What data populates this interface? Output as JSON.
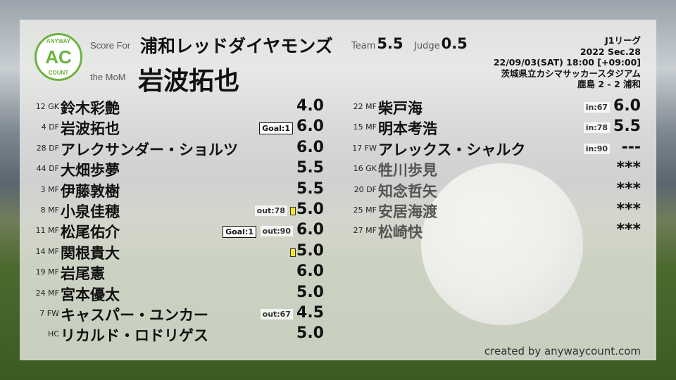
{
  "logo": {
    "top": "ANYWAY",
    "main": "AC",
    "bottom": "COUNT"
  },
  "header": {
    "score_for_label": "Score For",
    "team": "浦和レッドダイヤモンズ",
    "mom_label": "the MoM",
    "mom": "岩波拓也",
    "team_label": "Team",
    "team_score": "5.5",
    "judge_label": "Judge",
    "judge_score": "0.5"
  },
  "match": {
    "league": "J1リーグ",
    "section": "2022 Sec.28",
    "datetime": "22/09/03(SAT) 18:00 [+09:00]",
    "stadium": "茨城県立カシマサッカースタジアム",
    "result": "鹿島 2 - 2 浦和"
  },
  "starters": [
    {
      "num": "12",
      "pos": "GK",
      "name": "鈴木彩艶",
      "score": "4.0"
    },
    {
      "num": "4",
      "pos": "DF",
      "name": "岩波拓也",
      "score": "6.0",
      "goal": "Goal:1"
    },
    {
      "num": "28",
      "pos": "DF",
      "name": "アレクサンダー・ショルツ",
      "score": "6.0"
    },
    {
      "num": "44",
      "pos": "DF",
      "name": "大畑歩夢",
      "score": "5.5"
    },
    {
      "num": "3",
      "pos": "MF",
      "name": "伊藤敦樹",
      "score": "5.5"
    },
    {
      "num": "8",
      "pos": "MF",
      "name": "小泉佳穂",
      "score": "5.0",
      "sub": "out:78",
      "yellow": true
    },
    {
      "num": "11",
      "pos": "MF",
      "name": "松尾佑介",
      "score": "6.0",
      "goal": "Goal:1",
      "sub": "out:90"
    },
    {
      "num": "14",
      "pos": "MF",
      "name": "関根貴大",
      "score": "5.0",
      "yellow": true
    },
    {
      "num": "19",
      "pos": "MF",
      "name": "岩尾憲",
      "score": "6.0"
    },
    {
      "num": "24",
      "pos": "MF",
      "name": "宮本優太",
      "score": "5.0"
    },
    {
      "num": "7",
      "pos": "FW",
      "name": "キャスパー・ユンカー",
      "score": "4.5",
      "sub": "out:67"
    },
    {
      "num": "",
      "pos": "HC",
      "name": "リカルド・ロドリゲス",
      "score": "5.0"
    }
  ],
  "subs": [
    {
      "num": "22",
      "pos": "MF",
      "name": "柴戸海",
      "score": "6.0",
      "sub": "in:67"
    },
    {
      "num": "15",
      "pos": "MF",
      "name": "明本考浩",
      "score": "5.5",
      "sub": "in:78"
    },
    {
      "num": "17",
      "pos": "FW",
      "name": "アレックス・シャルク",
      "score": "---",
      "sub": "in:90"
    },
    {
      "num": "16",
      "pos": "GK",
      "name": "牲川歩見",
      "score": "***",
      "unused": true
    },
    {
      "num": "20",
      "pos": "DF",
      "name": "知念哲矢",
      "score": "***",
      "unused": true
    },
    {
      "num": "25",
      "pos": "MF",
      "name": "安居海渡",
      "score": "***",
      "unused": true
    },
    {
      "num": "27",
      "pos": "MF",
      "name": "松崎快",
      "score": "***",
      "unused": true
    }
  ],
  "credit": "created by anywaycount.com",
  "colors": {
    "brand": "#6db33f",
    "yellow_card": "#f2e92a"
  }
}
